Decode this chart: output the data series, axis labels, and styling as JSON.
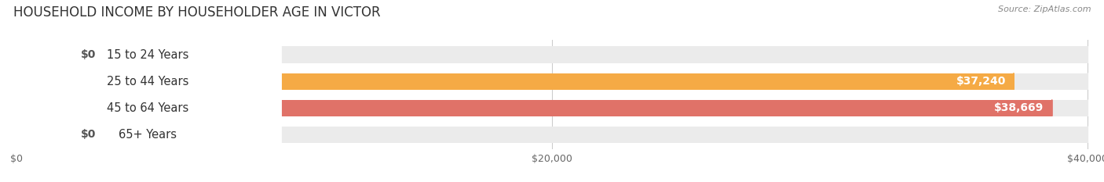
{
  "title": "HOUSEHOLD INCOME BY HOUSEHOLDER AGE IN VICTOR",
  "source": "Source: ZipAtlas.com",
  "categories": [
    "15 to 24 Years",
    "25 to 44 Years",
    "45 to 64 Years",
    "65+ Years"
  ],
  "values": [
    0,
    37240,
    38669,
    0
  ],
  "bar_colors": [
    "#f5a0b8",
    "#f5aa45",
    "#e07268",
    "#a8c4e8"
  ],
  "bar_bg_color": "#ebebeb",
  "background_color": "#ffffff",
  "xlim_max": 40000,
  "xticks": [
    0,
    20000,
    40000
  ],
  "xtick_labels": [
    "$0",
    "$20,000",
    "$40,000"
  ],
  "value_labels": [
    "$0",
    "$37,240",
    "$38,669",
    "$0"
  ],
  "title_fontsize": 12,
  "label_fontsize": 10.5,
  "tick_fontsize": 9,
  "value_label_fontsize": 10
}
